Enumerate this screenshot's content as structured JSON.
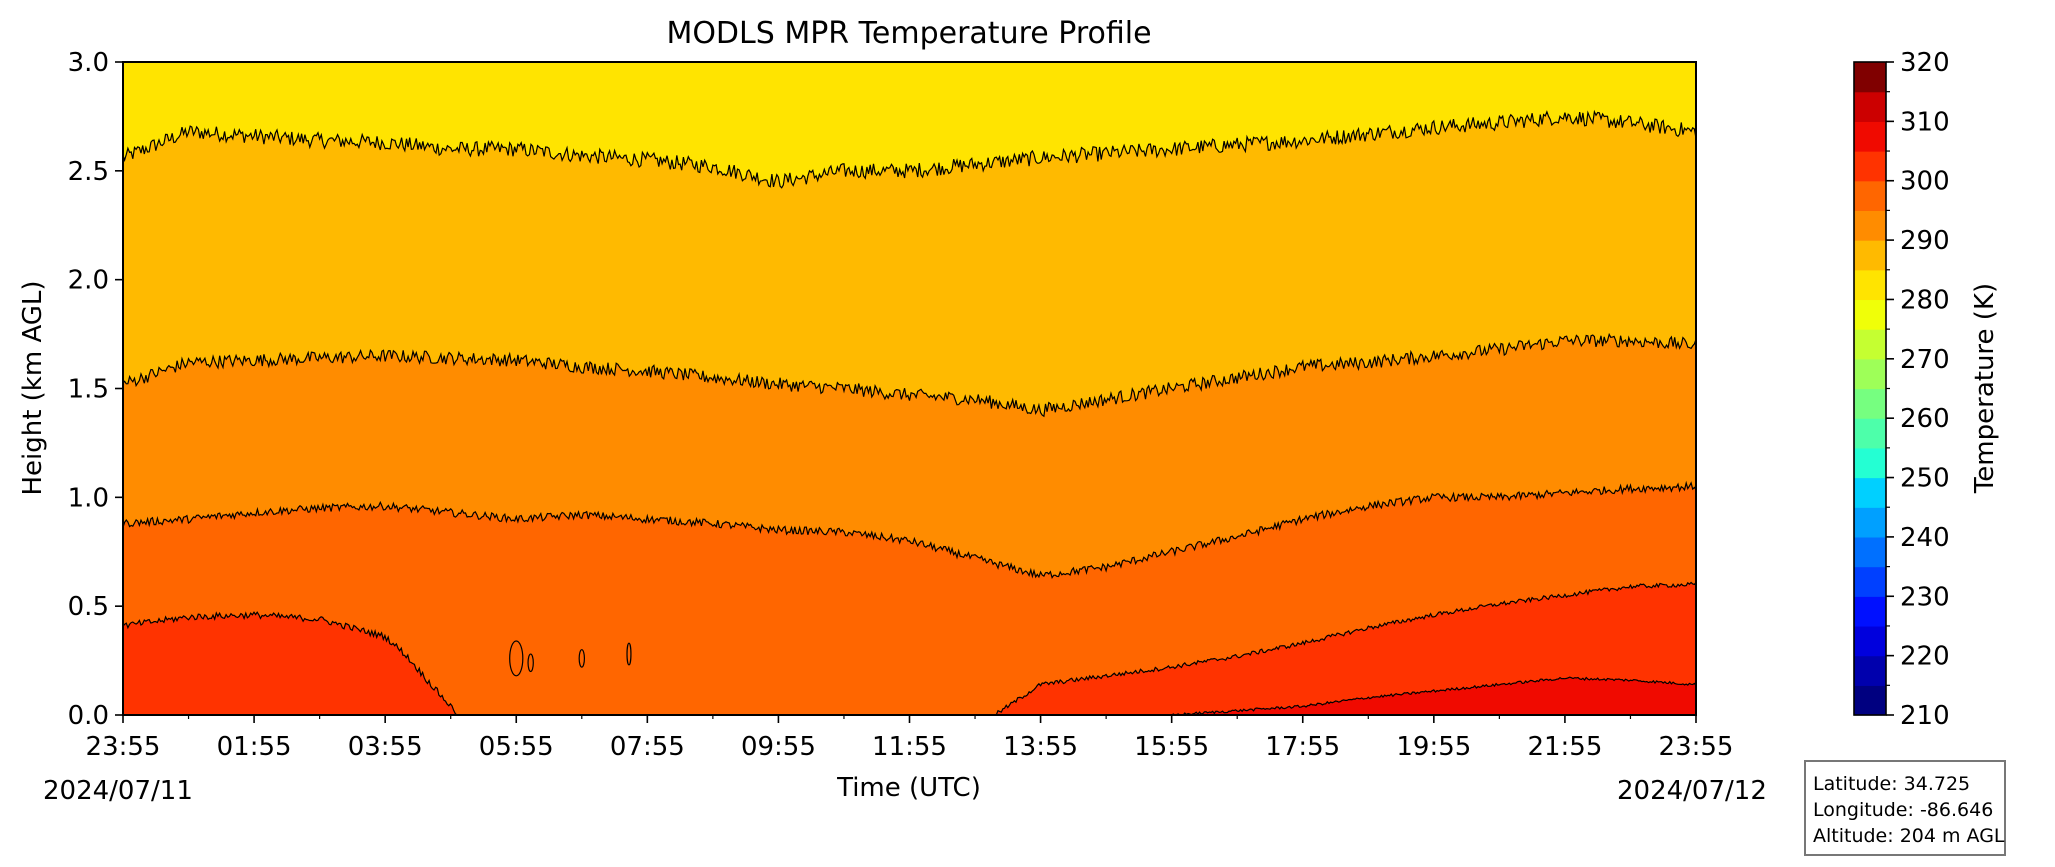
{
  "chart_data": {
    "type": "heatmap",
    "subtype": "filled-contour",
    "title": "MODLS MPR Temperature Profile",
    "xlabel": "Time (UTC)",
    "ylabel": "Height (km AGL)",
    "x_start_date": "2024/07/11",
    "x_end_date": "2024/07/12",
    "x_ticks": [
      "23:55",
      "01:55",
      "03:55",
      "05:55",
      "07:55",
      "09:55",
      "11:55",
      "13:55",
      "15:55",
      "17:55",
      "19:55",
      "21:55",
      "23:55"
    ],
    "x_tick_hours": [
      0,
      2,
      4,
      6,
      8,
      10,
      12,
      14,
      16,
      18,
      20,
      22,
      24
    ],
    "xlim_hours": [
      0,
      24
    ],
    "y_ticks": [
      "0.0",
      "0.5",
      "1.0",
      "1.5",
      "2.0",
      "2.5",
      "3.0"
    ],
    "ylim": [
      0,
      3.0
    ],
    "grid": false,
    "colorbar": {
      "label": "Temperature (K)",
      "range": [
        210,
        320
      ],
      "tick_labels": [
        "210",
        "220",
        "230",
        "240",
        "250",
        "260",
        "270",
        "280",
        "290",
        "300",
        "310",
        "320"
      ],
      "levels": [
        210,
        215,
        220,
        225,
        230,
        235,
        240,
        245,
        250,
        255,
        260,
        265,
        270,
        275,
        280,
        285,
        290,
        295,
        300,
        305,
        310,
        315,
        320
      ],
      "colors": [
        "#000080",
        "#0000ad",
        "#0000dd",
        "#0010ff",
        "#0040ff",
        "#0070ff",
        "#00a0ff",
        "#00d0ff",
        "#24ffd3",
        "#4dffaa",
        "#76ff80",
        "#9eff58",
        "#c5ff31",
        "#f0ff08",
        "#ffe400",
        "#ffba00",
        "#ff8c00",
        "#ff6600",
        "#ff3300",
        "#f00a00",
        "#cc0000",
        "#800000"
      ]
    },
    "bands": [
      {
        "range_K": [
          310,
          315
        ],
        "color": "#f00a00"
      },
      {
        "range_K": [
          305,
          310
        ],
        "color": "#ff3300"
      },
      {
        "range_K": [
          300,
          305
        ],
        "color": "#ff6600"
      },
      {
        "range_K": [
          295,
          300
        ],
        "color": "#ff8c00"
      },
      {
        "range_K": [
          290,
          295
        ],
        "color": "#ffba00"
      },
      {
        "range_K": [
          285,
          290
        ],
        "color": "#ffe400"
      }
    ],
    "contours": [
      {
        "name": "top",
        "hours": [
          0,
          1,
          2,
          3,
          4,
          5,
          6,
          7,
          8,
          9,
          10,
          11,
          12,
          13,
          14,
          15,
          16,
          17,
          18,
          19,
          20,
          21,
          22,
          23,
          24
        ],
        "heights": [
          2.56,
          2.68,
          2.66,
          2.64,
          2.63,
          2.6,
          2.6,
          2.57,
          2.55,
          2.52,
          2.45,
          2.5,
          2.5,
          2.53,
          2.56,
          2.58,
          2.6,
          2.62,
          2.64,
          2.67,
          2.7,
          2.72,
          2.75,
          2.72,
          2.68
        ]
      },
      {
        "name": "middle",
        "hours": [
          0,
          1,
          2,
          3,
          4,
          5,
          6,
          7,
          8,
          9,
          10,
          11,
          12,
          13,
          14,
          15,
          16,
          17,
          18,
          19,
          20,
          21,
          22,
          23,
          24
        ],
        "heights": [
          1.52,
          1.62,
          1.63,
          1.64,
          1.65,
          1.64,
          1.63,
          1.6,
          1.58,
          1.55,
          1.52,
          1.5,
          1.47,
          1.45,
          1.4,
          1.45,
          1.5,
          1.55,
          1.6,
          1.62,
          1.65,
          1.68,
          1.72,
          1.72,
          1.7
        ]
      },
      {
        "name": "lower",
        "hours": [
          0,
          1,
          2,
          3,
          4,
          5,
          6,
          7,
          8,
          9,
          10,
          11,
          12,
          13,
          14,
          15,
          16,
          17,
          18,
          19,
          20,
          21,
          22,
          23,
          24
        ],
        "heights": [
          0.88,
          0.9,
          0.93,
          0.95,
          0.96,
          0.93,
          0.9,
          0.92,
          0.9,
          0.88,
          0.85,
          0.84,
          0.8,
          0.72,
          0.64,
          0.68,
          0.75,
          0.82,
          0.9,
          0.96,
          1.0,
          1.0,
          1.02,
          1.04,
          1.05
        ]
      },
      {
        "name": "surface-warm-layer",
        "hours": [
          0,
          1,
          2,
          3,
          3.5,
          4,
          4.3,
          4.7,
          5.12
        ],
        "heights": [
          0.41,
          0.45,
          0.46,
          0.44,
          0.4,
          0.36,
          0.28,
          0.14,
          0.0
        ]
      },
      {
        "name": "afternoon-warm-layer",
        "hours": [
          13.3,
          14,
          15,
          16,
          17,
          18,
          19,
          20,
          21,
          22,
          23,
          24
        ],
        "heights": [
          0.0,
          0.14,
          0.18,
          0.22,
          0.27,
          0.33,
          0.4,
          0.46,
          0.51,
          0.55,
          0.59,
          0.6
        ]
      },
      {
        "name": "warmest-layer",
        "hours": [
          16,
          17,
          18,
          19,
          20,
          21,
          22,
          23,
          24
        ],
        "heights": [
          0.0,
          0.02,
          0.04,
          0.08,
          0.11,
          0.14,
          0.17,
          0.16,
          0.14
        ]
      }
    ],
    "small_contours": [
      {
        "hour": 6.0,
        "height": 0.26,
        "dx_hours": 0.1,
        "dh": 0.08
      },
      {
        "hour": 6.22,
        "height": 0.24,
        "dx_hours": 0.04,
        "dh": 0.04
      },
      {
        "hour": 7.0,
        "height": 0.26,
        "dx_hours": 0.04,
        "dh": 0.04
      },
      {
        "hour": 7.72,
        "height": 0.28,
        "dx_hours": 0.03,
        "dh": 0.05
      }
    ]
  },
  "info": {
    "latitude": "Latitude: 34.725",
    "longitude": "Longitude: -86.646",
    "altitude": "Altitude: 204 m AGL"
  }
}
